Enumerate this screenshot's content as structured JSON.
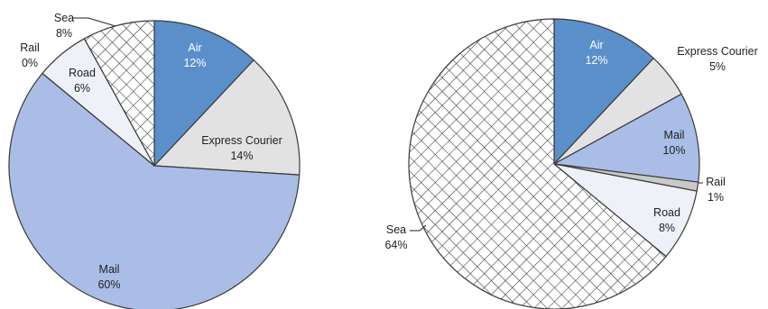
{
  "chart_data": [
    {
      "type": "pie",
      "title": "",
      "start_angle_deg": 0,
      "direction": "clockwise",
      "slices": [
        {
          "name": "Air",
          "value": 12,
          "label": "12%",
          "fill": "#5b8fca",
          "pattern": null,
          "text_color": "#ffffff"
        },
        {
          "name": "Express Courier",
          "value": 14,
          "label": "14%",
          "fill": "#e2e2e2",
          "pattern": null,
          "text_color": "#222222"
        },
        {
          "name": "Mail",
          "value": 60,
          "label": "60%",
          "fill": "#a9bde6",
          "pattern": null,
          "text_color": "#222222"
        },
        {
          "name": "Rail",
          "value": 0,
          "label": "0%",
          "fill": "#c9c9c9",
          "pattern": null,
          "text_color": "#222222"
        },
        {
          "name": "Road",
          "value": 6,
          "label": "6%",
          "fill": "#eef1f8",
          "pattern": null,
          "text_color": "#222222"
        },
        {
          "name": "Sea",
          "value": 8,
          "label": "8%",
          "fill": "#ffffff",
          "pattern": "crosshatch",
          "text_color": "#222222"
        }
      ]
    },
    {
      "type": "pie",
      "title": "",
      "start_angle_deg": 0,
      "direction": "clockwise",
      "slices": [
        {
          "name": "Air",
          "value": 12,
          "label": "12%",
          "fill": "#5b8fca",
          "pattern": null,
          "text_color": "#ffffff"
        },
        {
          "name": "Express Courier",
          "value": 5,
          "label": "5%",
          "fill": "#e2e2e2",
          "pattern": null,
          "text_color": "#222222"
        },
        {
          "name": "Mail",
          "value": 10,
          "label": "10%",
          "fill": "#a9bde6",
          "pattern": null,
          "text_color": "#222222"
        },
        {
          "name": "Rail",
          "value": 1,
          "label": "1%",
          "fill": "#c9c9c9",
          "pattern": null,
          "text_color": "#222222"
        },
        {
          "name": "Road",
          "value": 8,
          "label": "8%",
          "fill": "#eef1f8",
          "pattern": null,
          "text_color": "#222222"
        },
        {
          "name": "Sea",
          "value": 64,
          "label": "64%",
          "fill": "#ffffff",
          "pattern": "crosshatch",
          "text_color": "#222222"
        }
      ]
    }
  ]
}
